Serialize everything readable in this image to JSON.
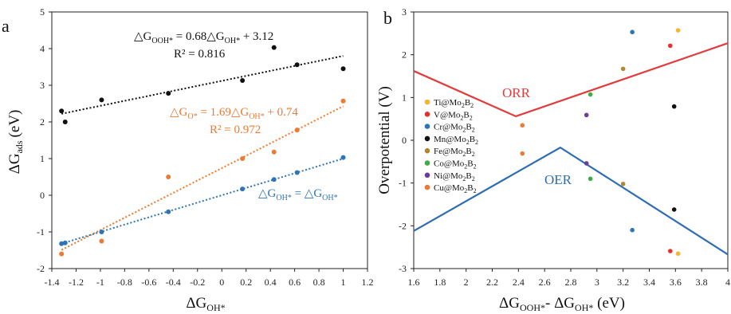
{
  "chart_data": [
    {
      "panel": "a",
      "type": "scatter",
      "xlabel": "ΔG",
      "xlabel_sub": "OH*",
      "ylabel": "ΔG",
      "ylabel_sub": "ads",
      "ylabel_unit": "(eV)",
      "xlim": [
        -1.4,
        1.2
      ],
      "ylim": [
        -2,
        5
      ],
      "xticks": [
        -1.4,
        -1.2,
        -1,
        -0.8,
        -0.6,
        -0.4,
        -0.2,
        0,
        0.2,
        0.4,
        0.6,
        0.8,
        1,
        1.2
      ],
      "yticks": [
        -2,
        -1,
        0,
        1,
        2,
        3,
        4,
        5
      ],
      "series": [
        {
          "color": "#111111",
          "x": [
            -1.32,
            -1.29,
            -0.99,
            -0.44,
            0.17,
            0.43,
            0.62,
            1.0
          ],
          "y": [
            2.3,
            2.0,
            2.6,
            2.78,
            3.13,
            4.03,
            3.56,
            3.45
          ],
          "fit": {
            "slope": 0.68,
            "intercept": 3.12,
            "x0": -1.32,
            "x1": 1.0
          },
          "equation": [
            {
              "t": "△G",
              "s": ""
            },
            {
              "t": "OOH*",
              "s": "sub"
            },
            {
              "t": " = 0.68△G",
              "s": ""
            },
            {
              "t": "OH*",
              "s": "sub"
            },
            {
              "t": " + 3.12",
              "s": ""
            }
          ],
          "r2": "R² = 0.816"
        },
        {
          "color": "#ec7a32",
          "x": [
            -1.32,
            -0.99,
            -0.44,
            0.17,
            0.43,
            0.62,
            1.0
          ],
          "y": [
            -1.6,
            -1.25,
            0.5,
            1.0,
            1.18,
            1.78,
            2.57
          ],
          "fit": {
            "slope": 1.69,
            "intercept": 0.74,
            "x0": -1.32,
            "x1": 1.0
          },
          "equation": [
            {
              "t": "△G",
              "s": ""
            },
            {
              "t": "O*",
              "s": "sub"
            },
            {
              "t": " = 1.69△G",
              "s": ""
            },
            {
              "t": "OH*",
              "s": "sub"
            },
            {
              "t": " + 0.74",
              "s": ""
            }
          ],
          "r2": "R² = 0.972"
        },
        {
          "color": "#2e75b6",
          "x": [
            -1.32,
            -1.29,
            -0.99,
            -0.44,
            0.17,
            0.43,
            0.62,
            1.0
          ],
          "y": [
            -1.32,
            -1.3,
            -1.0,
            -0.45,
            0.17,
            0.43,
            0.62,
            1.03
          ],
          "fit": {
            "slope": 1.0,
            "intercept": 0.0,
            "x0": -1.32,
            "x1": 1.0
          },
          "equation": [
            {
              "t": "△G",
              "s": ""
            },
            {
              "t": "OH*",
              "s": "sub"
            },
            {
              "t": "  = △G",
              "s": ""
            },
            {
              "t": "OH*",
              "s": "sub"
            }
          ],
          "r2": ""
        }
      ]
    },
    {
      "panel": "b",
      "type": "scatter",
      "xlabel": "ΔG",
      "xlabel_sub1": "OOH*",
      "xlabel_mid": "- ΔG",
      "xlabel_sub2": "OH*",
      "xlabel_unit": " (eV)",
      "ylabel": "Overpotential (V)",
      "xlim": [
        1.6,
        4.0
      ],
      "ylim": [
        -3,
        3
      ],
      "xticks": [
        1.6,
        1.8,
        2,
        2.2,
        2.4,
        2.6,
        2.8,
        3,
        3.2,
        3.4,
        3.6,
        3.8,
        4
      ],
      "yticks": [
        -3,
        -2,
        -1,
        0,
        1,
        2,
        3
      ],
      "lines": [
        {
          "name": "ORR",
          "color": "#e23b3b",
          "x": [
            1.6,
            2.38,
            4.0
          ],
          "y": [
            1.62,
            0.56,
            2.27
          ]
        },
        {
          "name": "OER",
          "color": "#2e6db3",
          "x": [
            1.6,
            2.72,
            4.0
          ],
          "y": [
            -2.12,
            -0.17,
            -2.67
          ]
        }
      ],
      "line_labels": [
        {
          "text": "ORR",
          "color": "#e23b3b"
        },
        {
          "text": "OER",
          "color": "#2e6db3"
        }
      ],
      "series": [
        {
          "name": [
            "Ti@Mo",
            "2",
            "B",
            "2"
          ],
          "color": "#f3b533",
          "x": [
            3.62,
            3.62
          ],
          "y": [
            2.57,
            -2.65
          ]
        },
        {
          "name": [
            "V@Mo",
            "2",
            "B",
            "2"
          ],
          "color": "#e8302b",
          "x": [
            3.56,
            3.56
          ],
          "y": [
            2.21,
            -2.59
          ]
        },
        {
          "name": [
            "Cr@Mo",
            "2",
            "B",
            "2"
          ],
          "color": "#2e75b6",
          "x": [
            3.27,
            3.27
          ],
          "y": [
            2.53,
            -2.1
          ]
        },
        {
          "name": [
            "Mn@Mo",
            "2",
            "B",
            "2"
          ],
          "color": "#111111",
          "x": [
            3.59,
            3.59
          ],
          "y": [
            0.79,
            -1.62
          ]
        },
        {
          "name": [
            "Fe@Mo",
            "2",
            "B",
            "2"
          ],
          "color": "#b0892f",
          "x": [
            3.2,
            3.2
          ],
          "y": [
            1.67,
            -1.02
          ]
        },
        {
          "name": [
            "Co@Mo",
            "2",
            "B",
            "2"
          ],
          "color": "#44a845",
          "x": [
            2.95,
            2.95
          ],
          "y": [
            1.07,
            -0.9
          ]
        },
        {
          "name": [
            "Ni@Mo",
            "2",
            "B",
            "2"
          ],
          "color": "#6a3d99",
          "x": [
            2.92,
            2.92
          ],
          "y": [
            0.59,
            -0.54
          ]
        },
        {
          "name": [
            "Cu@Mo",
            "2",
            "B",
            "2"
          ],
          "color": "#ec7a32",
          "x": [
            2.43,
            2.43
          ],
          "y": [
            0.35,
            -0.31
          ]
        }
      ]
    }
  ]
}
